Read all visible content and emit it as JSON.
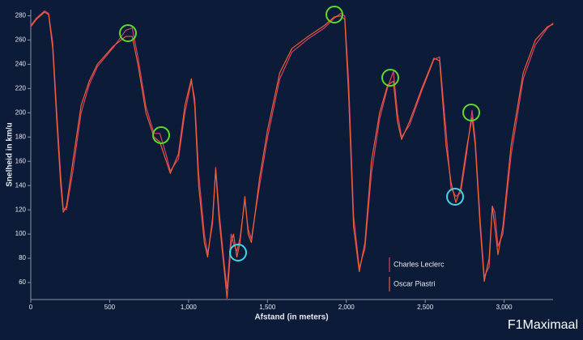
{
  "chart_data": {
    "type": "line",
    "x_label": "Afstand (in meters)",
    "y_label": "Snelheid in km/u",
    "watermark": "F1Maximaal",
    "x": [
      0,
      35,
      87,
      113,
      139,
      165,
      190,
      206,
      226,
      267,
      319,
      370,
      422,
      524,
      602,
      643,
      679,
      730,
      781,
      818,
      859,
      884,
      936,
      977,
      1018,
      1039,
      1064,
      1100,
      1121,
      1152,
      1172,
      1193,
      1224,
      1244,
      1270,
      1285,
      1306,
      1326,
      1357,
      1378,
      1398,
      1450,
      1501,
      1578,
      1655,
      1758,
      1861,
      1923,
      1964,
      1990,
      2015,
      2046,
      2082,
      2118,
      2159,
      2211,
      2262,
      2298,
      2324,
      2350,
      2401,
      2478,
      2555,
      2591,
      2632,
      2663,
      2694,
      2725,
      2761,
      2797,
      2817,
      2848,
      2874,
      2905,
      2925,
      2941,
      2961,
      2992,
      3044,
      3121,
      3198,
      3275,
      3311
    ],
    "series": [
      {
        "name": "Charles Leclerc",
        "color": "#d9406a",
        "values": [
          272,
          278,
          284,
          282,
          258,
          200,
          148,
          121,
          120,
          152,
          200,
          223,
          238,
          254,
          268,
          270,
          246,
          205,
          183,
          183,
          165,
          152,
          162,
          200,
          226,
          212,
          150,
          100,
          84,
          108,
          155,
          120,
          78,
          55,
          100,
          92,
          86,
          97,
          128,
          104,
          96,
          140,
          180,
          228,
          250,
          261,
          270,
          278,
          282,
          280,
          225,
          115,
          72,
          88,
          150,
          195,
          221,
          234,
          200,
          180,
          190,
          218,
          244,
          246,
          185,
          138,
          131,
          134,
          165,
          202,
          178,
          112,
          65,
          73,
          123,
          118,
          90,
          100,
          165,
          228,
          256,
          270,
          274
        ]
      },
      {
        "name": "Oscar Piastri",
        "color": "#f0602e",
        "values": [
          271,
          277,
          283,
          281,
          253,
          193,
          140,
          118,
          123,
          160,
          206,
          226,
          240,
          255,
          263,
          263,
          240,
          200,
          180,
          176,
          160,
          150,
          166,
          206,
          228,
          206,
          140,
          93,
          81,
          113,
          153,
          113,
          73,
          47,
          93,
          100,
          81,
          93,
          131,
          100,
          93,
          146,
          186,
          233,
          253,
          263,
          272,
          279,
          280,
          277,
          213,
          106,
          69,
          93,
          160,
          200,
          223,
          226,
          193,
          178,
          193,
          220,
          245,
          243,
          173,
          143,
          126,
          138,
          170,
          196,
          173,
          106,
          61,
          80,
          123,
          106,
          83,
          106,
          173,
          233,
          260,
          271,
          273
        ]
      }
    ],
    "xlim": [
      0,
      3310
    ],
    "ylim": [
      46,
      285
    ],
    "xticks": [
      0,
      500,
      {
        "value": 1000,
        "label": "1,000"
      },
      {
        "value": 1500,
        "label": "1,500"
      },
      {
        "value": 2000,
        "label": "2,000"
      },
      {
        "value": 2500,
        "label": "2,500"
      },
      {
        "value": 3000,
        "label": "3,000"
      }
    ],
    "yticks": [
      60,
      80,
      100,
      120,
      140,
      160,
      180,
      200,
      220,
      240,
      260,
      280
    ],
    "grid": false,
    "legend": "bottom-right"
  }
}
